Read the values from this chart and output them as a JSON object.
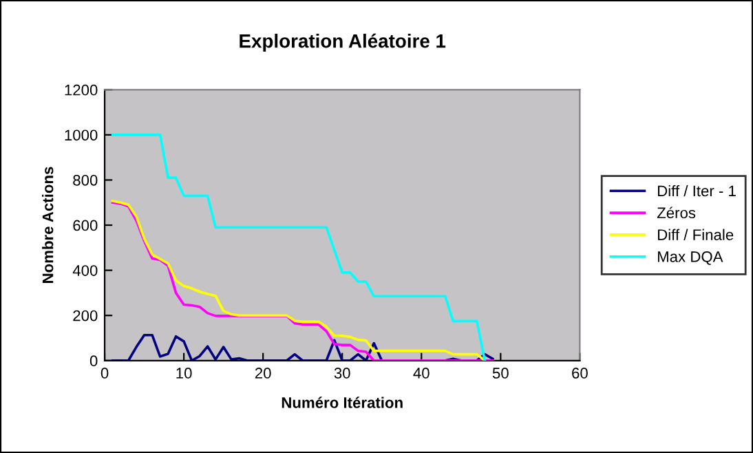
{
  "chart_data": {
    "type": "line",
    "title": "Exploration Aléatoire 1",
    "xlabel": "Numéro Itération",
    "ylabel": "Nombre Actions",
    "x": [
      1,
      2,
      3,
      4,
      5,
      6,
      7,
      8,
      9,
      10,
      11,
      12,
      13,
      14,
      15,
      16,
      17,
      18,
      19,
      20,
      21,
      22,
      23,
      24,
      25,
      26,
      27,
      28,
      29,
      30,
      31,
      32,
      33,
      34,
      35,
      36,
      37,
      38,
      39,
      40,
      41,
      42,
      43,
      44,
      45,
      46,
      47,
      48,
      49
    ],
    "series": [
      {
        "name": "Diff / Iter - 1",
        "color": "#000080",
        "values": [
          0,
          0,
          0,
          60,
          113,
          113,
          18,
          30,
          107,
          85,
          0,
          20,
          63,
          5,
          60,
          5,
          10,
          0,
          0,
          0,
          0,
          0,
          0,
          28,
          0,
          0,
          0,
          0,
          90,
          0,
          0,
          28,
          0,
          77,
          0,
          0,
          0,
          0,
          0,
          0,
          0,
          0,
          0,
          8,
          0,
          0,
          0,
          28,
          8
        ]
      },
      {
        "name": "Zéros",
        "color": "#ff00ff",
        "values": [
          700,
          695,
          683,
          620,
          530,
          452,
          446,
          420,
          300,
          248,
          245,
          238,
          210,
          198,
          198,
          198,
          198,
          198,
          198,
          198,
          198,
          198,
          198,
          165,
          160,
          160,
          160,
          130,
          73,
          69,
          69,
          43,
          39,
          0,
          0,
          0,
          0,
          0,
          0,
          0,
          0,
          0,
          0,
          0,
          0,
          0,
          0,
          0,
          0
        ]
      },
      {
        "name": "Diff / Finale",
        "color": "#ffff00",
        "values": [
          707,
          700,
          690,
          638,
          540,
          470,
          450,
          430,
          355,
          330,
          320,
          305,
          295,
          287,
          220,
          205,
          200,
          200,
          200,
          200,
          200,
          200,
          200,
          176,
          172,
          172,
          172,
          150,
          110,
          110,
          105,
          92,
          89,
          43,
          43,
          43,
          43,
          43,
          43,
          43,
          43,
          43,
          43,
          28,
          28,
          28,
          28,
          0,
          null
        ]
      },
      {
        "name": "Max DQA",
        "color": "#00ffff",
        "values": [
          1000,
          1000,
          1000,
          1000,
          1000,
          1000,
          1000,
          810,
          810,
          730,
          730,
          730,
          730,
          590,
          590,
          590,
          590,
          590,
          590,
          590,
          590,
          590,
          590,
          590,
          590,
          590,
          590,
          590,
          490,
          390,
          390,
          350,
          350,
          285,
          285,
          285,
          285,
          285,
          285,
          285,
          285,
          285,
          285,
          175,
          175,
          175,
          175,
          0,
          null
        ]
      }
    ],
    "xlim": [
      0,
      60
    ],
    "xticks": [
      0,
      10,
      20,
      30,
      40,
      50,
      60
    ],
    "ylim": [
      0,
      1200
    ],
    "yticks": [
      0,
      200,
      400,
      600,
      800,
      1000,
      1200
    ],
    "grid": false,
    "legend": "right",
    "marker": "none",
    "line_style": "solid"
  }
}
